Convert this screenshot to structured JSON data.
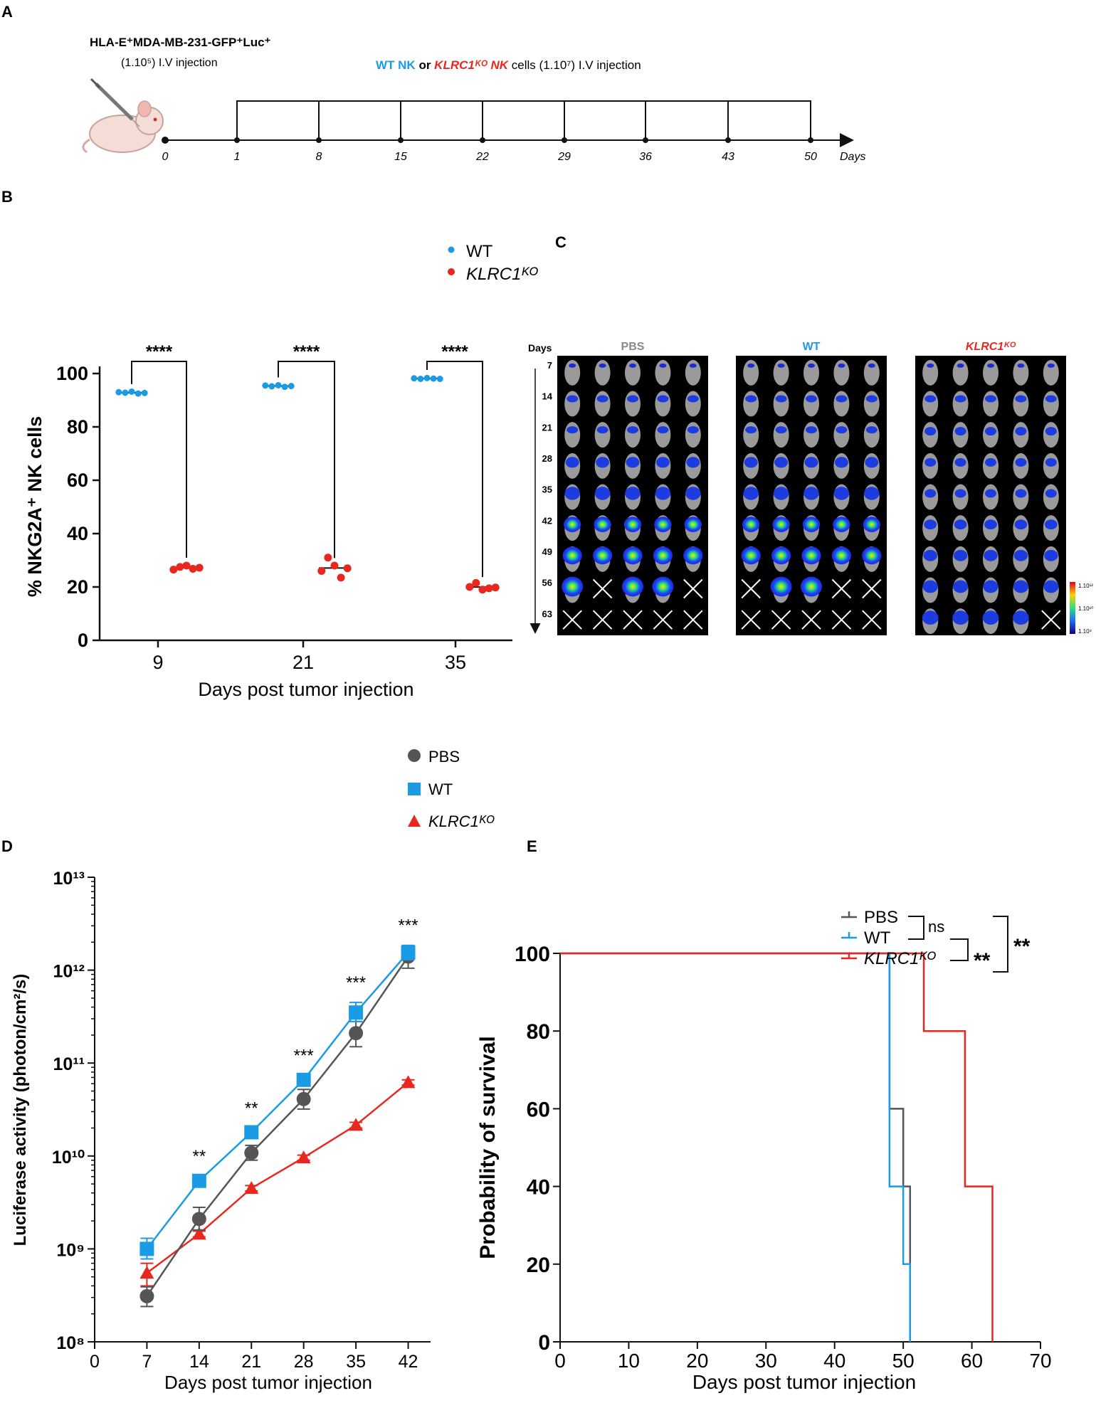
{
  "colors": {
    "pbs": "#555555",
    "wt": "#1a9be6",
    "ko": "#e8271e",
    "axis": "#111111",
    "mouse": "#f2d5d0"
  },
  "panels": {
    "a": "A",
    "b": "B",
    "c": "C",
    "d": "D",
    "e": "E"
  },
  "panel_a": {
    "tumor_line1": "HLA-E⁺MDA-MB-231-GFP⁺Luc⁺",
    "tumor_line2": "(1.10⁵) I.V injection",
    "nk_wt": "WT NK",
    "nk_or": " or ",
    "nk_ko": "KLRC1ᴷᴼ NK",
    "nk_rest": " cells (1.10⁷) I.V injection",
    "days_label": "Days",
    "ticks": [
      "0",
      "1",
      "8",
      "15",
      "22",
      "29",
      "36",
      "43",
      "50"
    ]
  },
  "panel_c": {
    "days_header": "Days",
    "days": [
      "7",
      "14",
      "21",
      "28",
      "35",
      "42",
      "49",
      "56",
      "63"
    ],
    "groups": [
      "PBS",
      "WT",
      "KLRC1ᴷᴼ"
    ],
    "scale_labels": [
      "1.10¹²",
      "1.10¹⁰",
      "1.10⁸"
    ]
  },
  "chart_data": [
    {
      "type": "scatter",
      "panel": "B",
      "title": "",
      "xlabel": "Days post tumor injection",
      "ylabel": "% NKG2A⁺ NK cells",
      "ylim": [
        0,
        100
      ],
      "yticks": [
        "0",
        "20",
        "40",
        "60",
        "80",
        "100"
      ],
      "categories": [
        "9",
        "21",
        "35"
      ],
      "legend": [
        "WT",
        "KLRC1ᴷᴼ"
      ],
      "significance": [
        "****",
        "****",
        "****"
      ],
      "series": [
        {
          "name": "WT",
          "values": [
            [
              93.0,
              92.8,
              93.2,
              92.5,
              92.7
            ],
            [
              95.5,
              95.2,
              95.6,
              95.0,
              95.3
            ],
            [
              98.2,
              98.0,
              98.3,
              98.1,
              98.0
            ]
          ]
        },
        {
          "name": "KLRC1ᴷᴼ",
          "values": [
            [
              26.5,
              27.5,
              28.0,
              26.8,
              27.2
            ],
            [
              26.0,
              31.0,
              28.0,
              23.5,
              27.0
            ],
            [
              20.0,
              21.5,
              19.0,
              19.5,
              19.8
            ]
          ]
        }
      ]
    },
    {
      "type": "line",
      "panel": "D",
      "xlabel": "Days post tumor injection",
      "ylabel": "Luciferase activity (photon/cm²/s)",
      "yscale": "log",
      "ylim": [
        100000000,
        10000000000000
      ],
      "yticks": [
        "10⁸",
        "10⁹",
        "10¹⁰",
        "10¹¹",
        "10¹²",
        "10¹³"
      ],
      "xlim": [
        0,
        45
      ],
      "xticks": [
        "0",
        "7",
        "14",
        "21",
        "28",
        "35",
        "42"
      ],
      "x": [
        7,
        14,
        21,
        28,
        35,
        42
      ],
      "significance": [
        "",
        "**",
        "**",
        "***",
        "***",
        "***"
      ],
      "legend": [
        "PBS",
        "WT",
        "KLRC1ᴷᴼ"
      ],
      "series": [
        {
          "name": "PBS",
          "values": [
            310000000,
            2100000000,
            10800000000,
            41000000000,
            210000000000,
            1400000000000
          ],
          "err_hi": [
            390000000,
            2800000000,
            13000000000,
            52000000000,
            280000000000,
            1700000000000
          ],
          "err_lo": [
            240000000,
            1600000000,
            9000000000,
            32000000000,
            150000000000,
            1050000000000
          ]
        },
        {
          "name": "WT",
          "values": [
            1000000000,
            5400000000,
            18000000000,
            66000000000,
            350000000000,
            1550000000000
          ],
          "err_hi": [
            1300000000,
            6100000000,
            20000000000,
            74000000000,
            450000000000,
            1850000000000
          ],
          "err_lo": [
            780000000,
            4800000000,
            16000000000,
            58000000000,
            280000000000,
            1300000000000
          ]
        },
        {
          "name": "KLRC1ᴷᴼ",
          "values": [
            550000000,
            1450000000,
            4500000000,
            9600000000,
            21500000000,
            62000000000
          ],
          "err_hi": [
            700000000,
            1550000000,
            4800000000,
            10200000000,
            23000000000,
            66000000000
          ],
          "err_lo": [
            400000000,
            1350000000,
            4200000000,
            9000000000,
            20000000000,
            58000000000
          ]
        }
      ]
    },
    {
      "type": "line",
      "panel": "E",
      "subtype": "survival-step",
      "xlabel": "Days post tumor injection",
      "ylabel": "Probability of survival",
      "xlim": [
        0,
        70
      ],
      "ylim": [
        0,
        100
      ],
      "xticks": [
        "0",
        "10",
        "20",
        "30",
        "40",
        "50",
        "60",
        "70"
      ],
      "yticks": [
        "0",
        "20",
        "40",
        "60",
        "80",
        "100"
      ],
      "legend": [
        "PBS",
        "WT",
        "KLRC1ᴷᴼ"
      ],
      "significance": {
        "pbs_vs_wt": "ns",
        "wt_vs_ko": "**",
        "pbs_vs_ko": "**"
      },
      "series": [
        {
          "name": "PBS",
          "points": [
            [
              0,
              100
            ],
            [
              48,
              100
            ],
            [
              48,
              60
            ],
            [
              50,
              60
            ],
            [
              50,
              40
            ],
            [
              51,
              40
            ],
            [
              51,
              0
            ]
          ]
        },
        {
          "name": "WT",
          "points": [
            [
              0,
              100
            ],
            [
              48,
              100
            ],
            [
              48,
              40
            ],
            [
              50,
              40
            ],
            [
              50,
              20
            ],
            [
              51,
              20
            ],
            [
              51,
              0
            ]
          ]
        },
        {
          "name": "KLRC1ᴷᴼ",
          "points": [
            [
              0,
              100
            ],
            [
              53,
              100
            ],
            [
              53,
              80
            ],
            [
              59,
              80
            ],
            [
              59,
              40
            ],
            [
              63,
              40
            ],
            [
              63,
              0
            ]
          ]
        }
      ]
    }
  ]
}
